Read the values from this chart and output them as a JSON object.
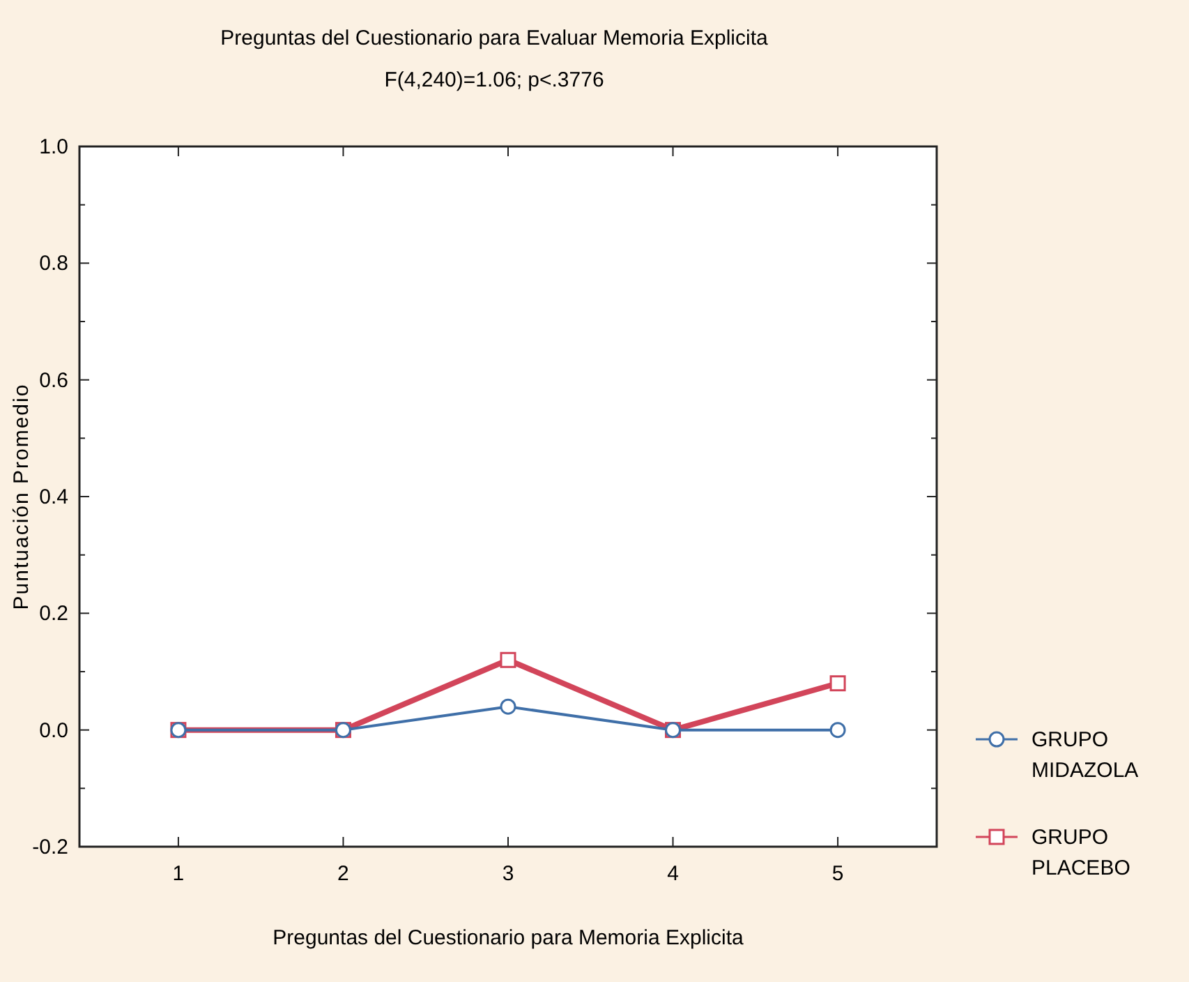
{
  "chart_data": {
    "type": "line",
    "title": "Preguntas del Cuestionario para Evaluar Memoria Explicita",
    "subtitle": "F(4,240)=1.06; p<.3776",
    "xlabel": "Preguntas del Cuestionario para Memoria Explicita",
    "ylabel": "Puntuación Promedio",
    "categories": [
      "1",
      "2",
      "3",
      "4",
      "5"
    ],
    "series": [
      {
        "name": "GRUPO MIDAZOLA",
        "color": "#3f6fa8",
        "marker": "circle",
        "values": [
          0,
          0,
          0.04,
          0,
          0
        ]
      },
      {
        "name": "GRUPO PLACEBO",
        "color": "#d2455a",
        "marker": "square",
        "values": [
          0,
          0,
          0.12,
          0,
          0.08
        ]
      }
    ],
    "ylim": [
      -0.2,
      1.0
    ],
    "yticks": [
      {
        "value": -0.2,
        "label": "-0.2"
      },
      {
        "value": -0.1,
        "label": null
      },
      {
        "value": 0,
        "label": "0.0"
      },
      {
        "value": 0.1,
        "label": null
      },
      {
        "value": 0.2,
        "label": "0.2"
      },
      {
        "value": 0.3,
        "label": null
      },
      {
        "value": 0.4,
        "label": "0.4"
      },
      {
        "value": 0.5,
        "label": null
      },
      {
        "value": 0.6,
        "label": "0.6"
      },
      {
        "value": 0.7,
        "label": null
      },
      {
        "value": 0.8,
        "label": "0.8"
      },
      {
        "value": 0.9,
        "label": null
      },
      {
        "value": 1.0,
        "label": "1.0"
      }
    ],
    "legend": "right"
  }
}
